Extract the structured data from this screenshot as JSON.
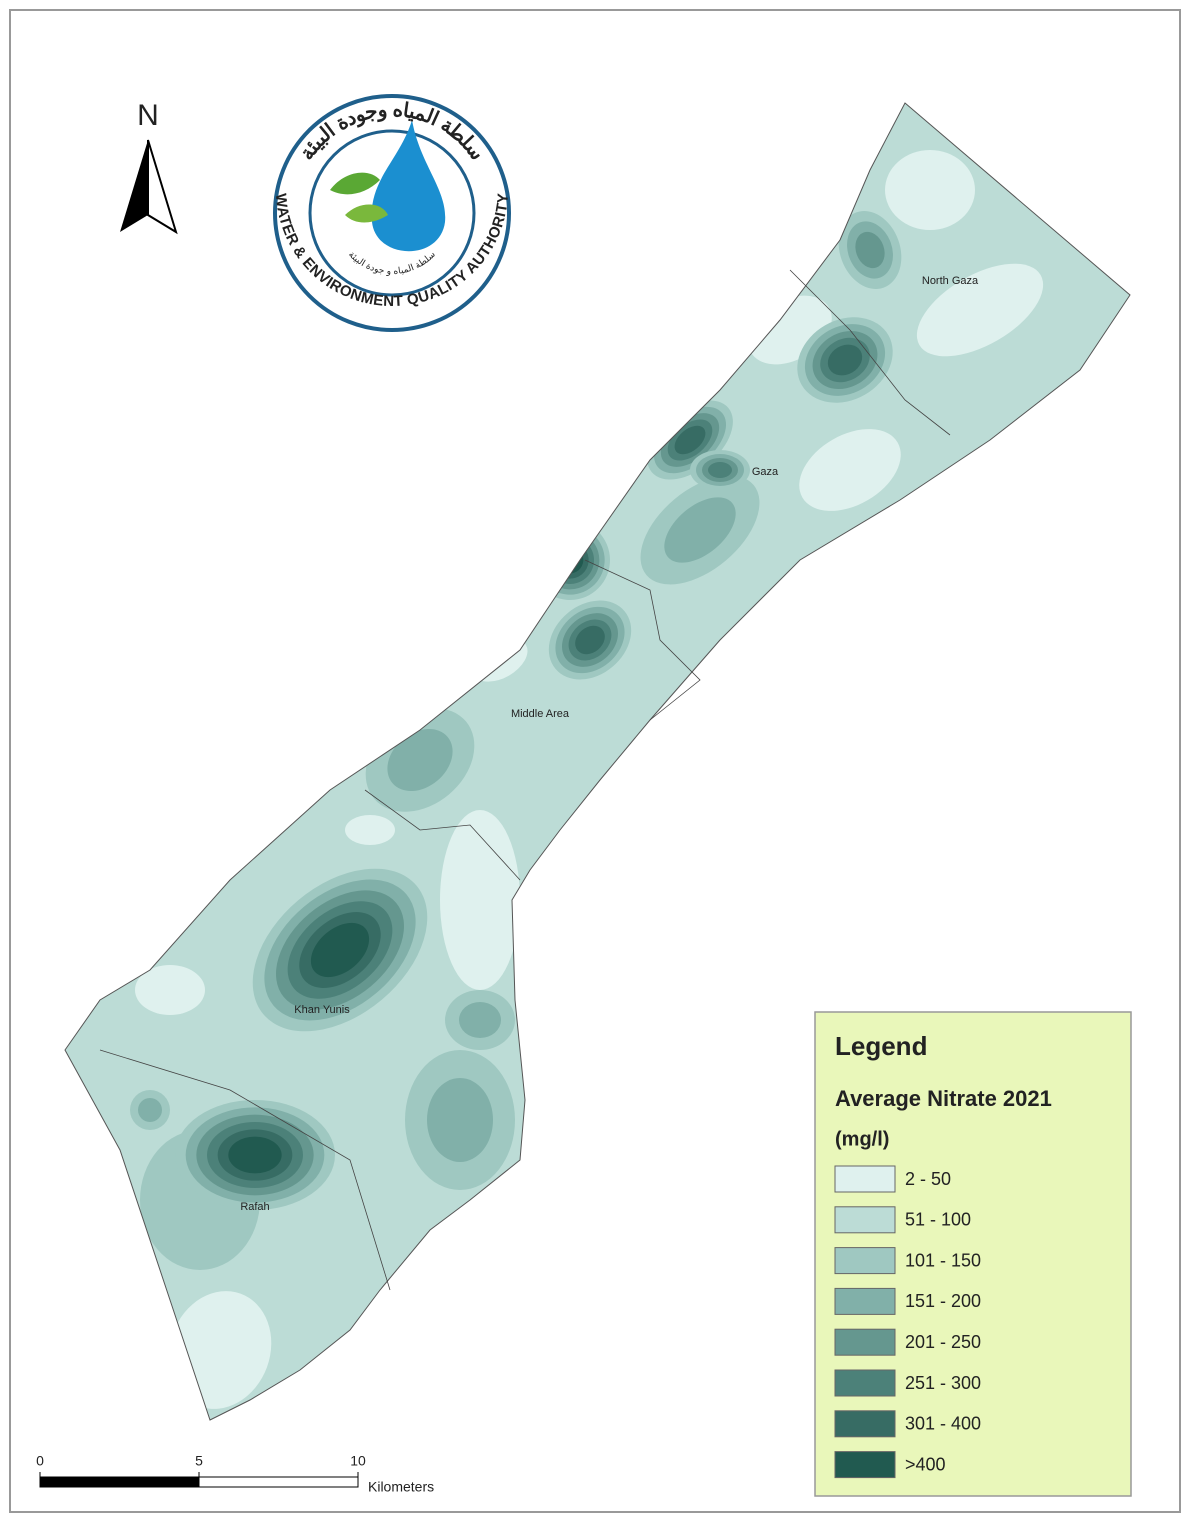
{
  "north_arrow": {
    "label": "N"
  },
  "logo": {
    "arabic_title": "سلطة المياه وجودة البيئة",
    "english_name": "WATER & ENVIRONMENT QUALITY AUTHORITY",
    "arabic_subtitle": "سلطة المياه و جودة البيئة"
  },
  "regions": [
    {
      "label": "North Gaza"
    },
    {
      "label": "Gaza"
    },
    {
      "label": "Middle Area"
    },
    {
      "label": "Khan Yunis"
    },
    {
      "label": "Rafah"
    }
  ],
  "legend": {
    "title": "Legend",
    "subtitle": "Average Nitrate 2021",
    "unit": "(mg/l)",
    "classes": [
      {
        "label": "2 - 50",
        "color": "#dff1ee"
      },
      {
        "label": "51 - 100",
        "color": "#bcdcd6"
      },
      {
        "label": "101 - 150",
        "color": "#9fc8c1"
      },
      {
        "label": "151 - 200",
        "color": "#81b0a9"
      },
      {
        "label": "201 - 250",
        "color": "#65978f"
      },
      {
        "label": "251 - 300",
        "color": "#4c8179"
      },
      {
        "label": "301 - 400",
        "color": "#376c64"
      },
      {
        "label": ">400",
        "color": "#215a50"
      }
    ]
  },
  "scale_bar": {
    "ticks": [
      0,
      5,
      10
    ],
    "unit": "Kilometers"
  }
}
